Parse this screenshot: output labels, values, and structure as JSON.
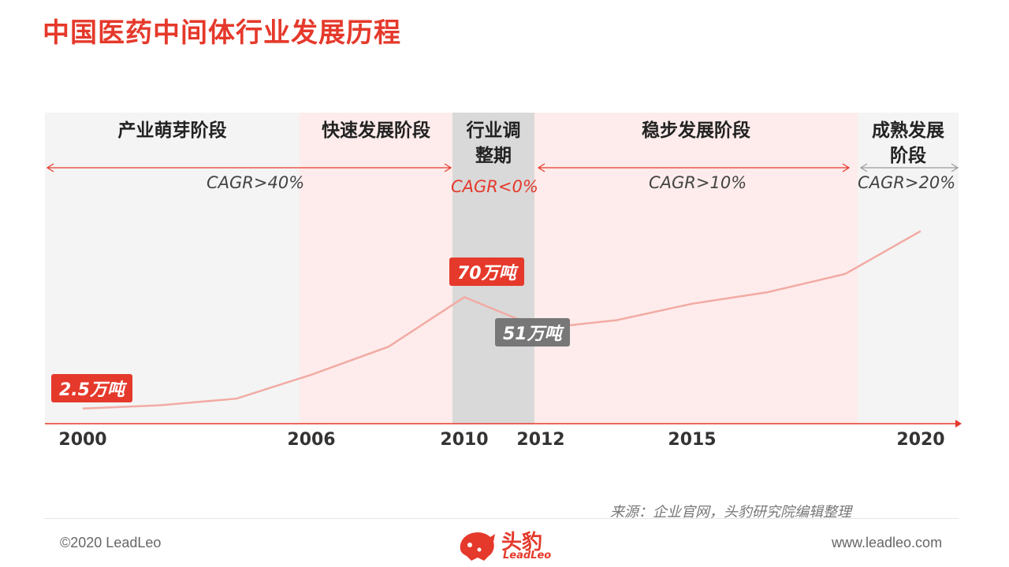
{
  "title": "中国医药中间体行业发展历程",
  "stages": [
    {
      "name": "产业萌芽阶段"
    },
    {
      "name": "快速发展阶段"
    },
    {
      "name": "行业调\n整期"
    },
    {
      "name": "稳步发展阶段"
    },
    {
      "name": "成熟发展\n阶段"
    }
  ],
  "cagr": [
    {
      "text": "CAGR>40%",
      "color": "#444444"
    },
    {
      "text": "CAGR<0%",
      "color": "#e5392b"
    },
    {
      "text": "CAGR>10%",
      "color": "#444444"
    },
    {
      "text": "CAGR>20%",
      "color": "#444444"
    }
  ],
  "chart_data": {
    "type": "line",
    "x_ticks": [
      "2000",
      "2006",
      "2010",
      "2012",
      "2015",
      "2020"
    ],
    "series": [
      {
        "values": [
          2.5,
          4.5,
          8.5,
          23,
          40,
          70,
          51,
          56,
          66,
          73,
          84,
          110
        ]
      }
    ],
    "annotations": [
      {
        "text": "2.5万吨",
        "color": "#e5392b"
      },
      {
        "text": "70万吨",
        "color": "#e5392b"
      },
      {
        "text": "51万吨",
        "color": "#777777"
      }
    ],
    "colors": {
      "line": "#f2aba4",
      "axis": "#e5392b"
    }
  },
  "source": "来源：企业官网，头豹研究院编辑整理",
  "footer": {
    "copyright": "©2020 LeadLeo",
    "site": "www.leadleo.com",
    "logo_text": "头豹",
    "logo_sub": "LeadLeo"
  }
}
